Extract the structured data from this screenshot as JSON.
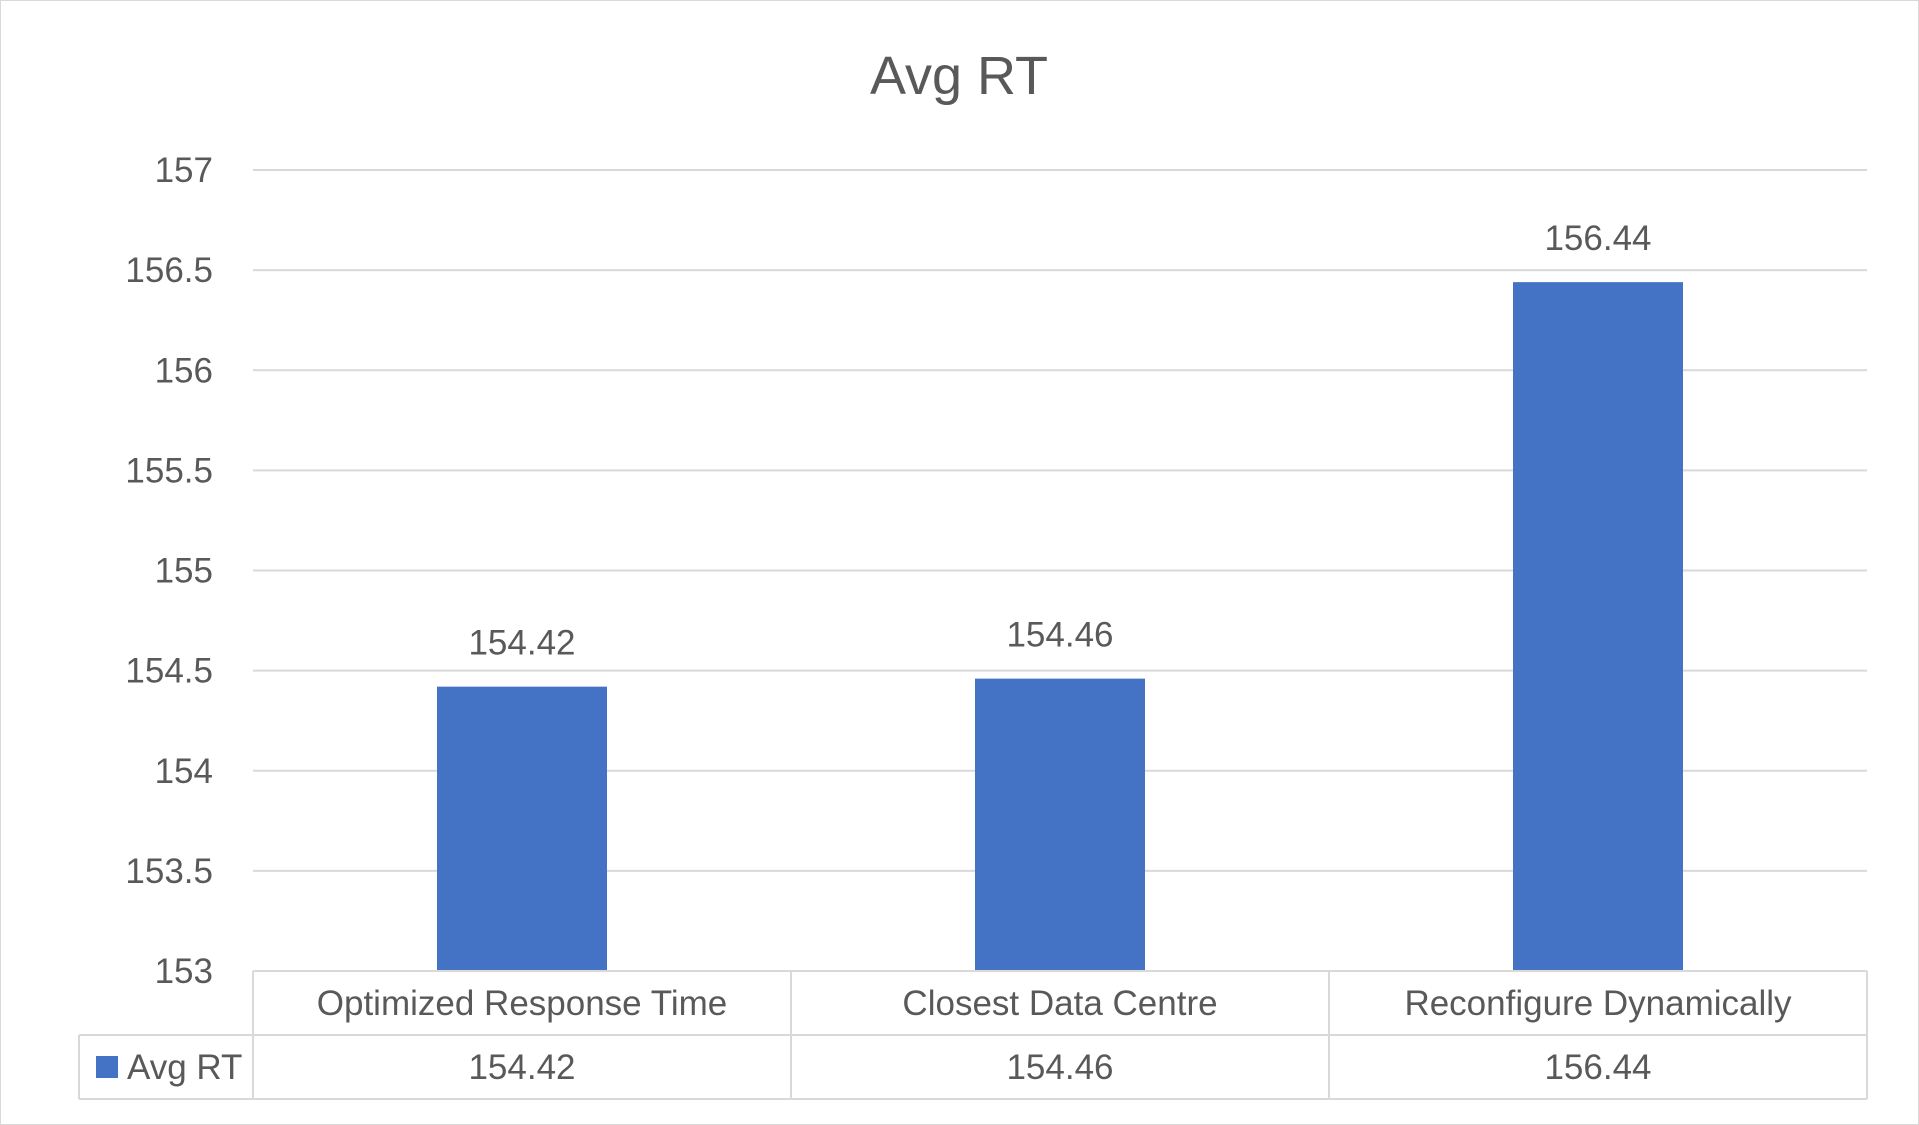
{
  "chart_data": {
    "type": "bar",
    "title": "Avg RT",
    "xlabel": "",
    "ylabel": "",
    "categories": [
      "Optimized Response Time",
      "Closest Data Centre",
      "Reconfigure Dynamically"
    ],
    "series": [
      {
        "name": "Avg RT",
        "values": [
          154.42,
          154.46,
          156.44
        ],
        "value_labels": [
          "154.42",
          "154.46",
          "156.44"
        ]
      }
    ],
    "ylim": [
      153,
      157
    ],
    "yticks": [
      153,
      153.5,
      154,
      154.5,
      155,
      155.5,
      156,
      156.5,
      157
    ],
    "ytick_labels": [
      "153",
      "153.5",
      "154",
      "154.5",
      "155",
      "155.5",
      "156",
      "156.5",
      "157"
    ],
    "grid": true,
    "data_labels": true,
    "data_table": true,
    "legend_placement": "data-table",
    "colors": {
      "bar": "#4472c4",
      "grid": "#d9d9d9",
      "text": "#595959",
      "title": "#595959",
      "label": "#404040",
      "background": "#ffffff"
    }
  }
}
